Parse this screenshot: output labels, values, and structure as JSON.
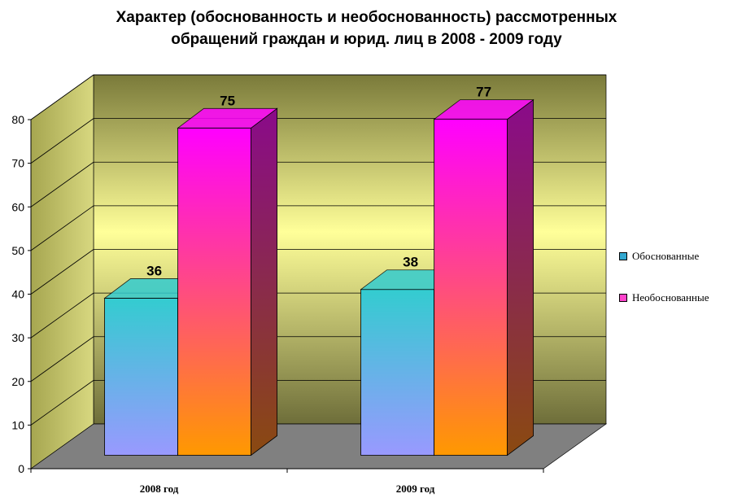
{
  "chart_data": {
    "type": "bar",
    "title_line1": "Характер (обоснованность  и необоснованность) рассмотренных",
    "title_line2": "обращений граждан и юрид. лиц в 2008 - 2009 году",
    "categories": [
      "2008 год",
      "2009 год"
    ],
    "series": [
      {
        "name": "Обоснованные",
        "values": [
          36,
          38
        ],
        "color_top": "#33ccd0",
        "color_bottom": "#9999ff",
        "color_side": "#1f7c80"
      },
      {
        "name": "Необоснованные",
        "values": [
          75,
          77
        ],
        "color_top": "#ff00ff",
        "color_bottom": "#ff9900",
        "color_side": "#8b1a8b"
      }
    ],
    "data_labels": [
      "36",
      "75",
      "38",
      "77"
    ],
    "y_ticks": [
      "0",
      "10",
      "20",
      "30",
      "40",
      "50",
      "60",
      "70",
      "80"
    ],
    "ylim": [
      0,
      80
    ],
    "grid": true,
    "legend_position": "right",
    "wall_color_top": "#7a7a3a",
    "wall_color_bottom": "#ffff99",
    "floor_color": "#808080"
  }
}
